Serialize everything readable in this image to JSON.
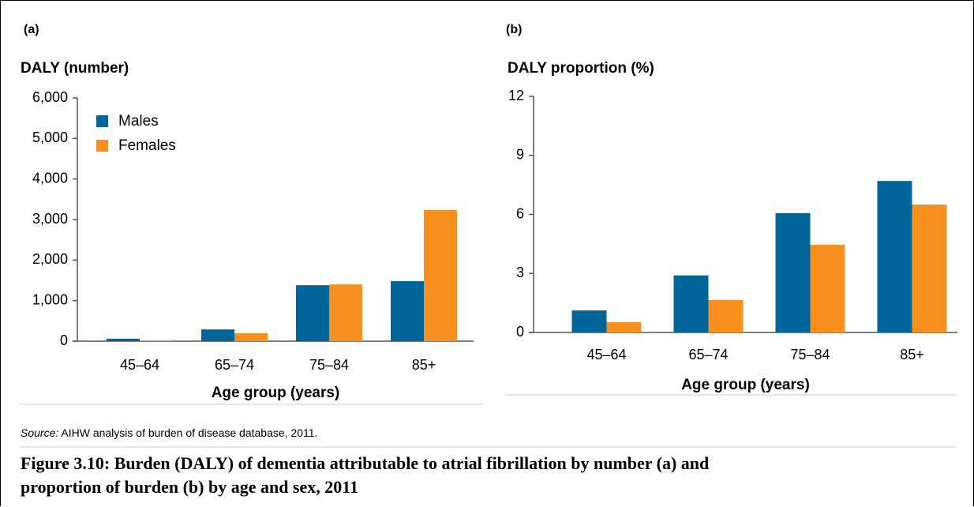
{
  "chart_data": [
    {
      "type": "bar",
      "panel": "(a)",
      "y_label": "DALY (number)",
      "x_label": "Age group (years)",
      "categories": [
        "45–64",
        "65–74",
        "75–84",
        "85+"
      ],
      "series": [
        {
          "name": "Males",
          "color": "#00669a",
          "values": [
            60,
            290,
            1380,
            1480
          ]
        },
        {
          "name": "Females",
          "color": "#f7901e",
          "values": [
            10,
            195,
            1400,
            3235
          ]
        }
      ],
      "ylim": [
        0,
        6000
      ],
      "yticks": [
        0,
        {
          "value": 1000,
          "label": "1,000"
        },
        {
          "value": 2000,
          "label": "2,000"
        },
        {
          "value": 3000,
          "label": "3,000"
        },
        {
          "value": 4000,
          "label": "4,000"
        },
        {
          "value": 5000,
          "label": "5,000"
        },
        {
          "value": 6000,
          "label": "6,000"
        }
      ],
      "legend": "upper left"
    },
    {
      "type": "bar",
      "panel": "(b)",
      "y_label": "DALY proportion (%)",
      "x_label": "Age group (years)",
      "categories": [
        "45–64",
        "65–74",
        "75–84",
        "85+"
      ],
      "series": [
        {
          "name": "Males",
          "color": "#00669a",
          "values": [
            1.12,
            2.9,
            6.06,
            7.7
          ]
        },
        {
          "name": "Females",
          "color": "#f7901e",
          "values": [
            0.52,
            1.65,
            4.46,
            6.5
          ]
        }
      ],
      "ylim": [
        0,
        12
      ],
      "yticks": [
        0,
        3,
        6,
        9,
        12
      ],
      "legend": false
    }
  ],
  "source_label": "Source:",
  "source_text": "AIHW analysis of burden of disease database, 2011.",
  "caption": "Figure 3.10: Burden (DALY) of dementia attributable to atrial fibrillation by number (a) and proportion of burden (b) by age and sex, 2011"
}
